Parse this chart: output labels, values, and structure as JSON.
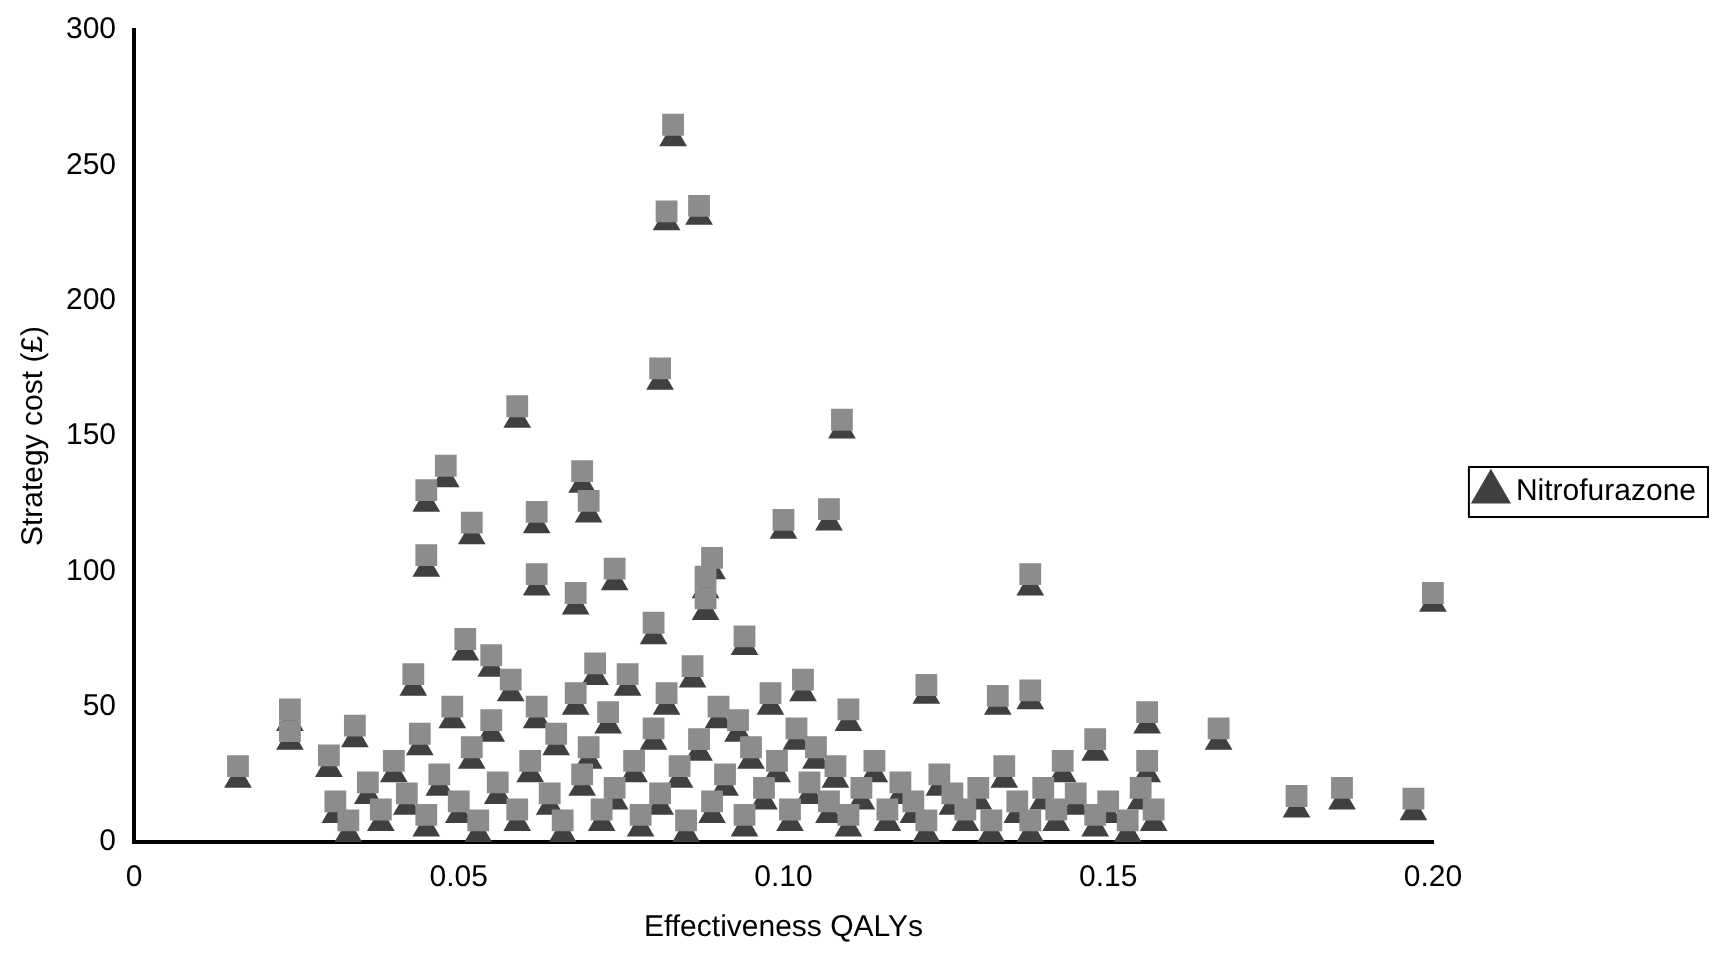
{
  "chart_data": {
    "type": "scatter",
    "xlabel": "Effectiveness QALYs",
    "ylabel": "Strategy cost (£)",
    "xlim": [
      0,
      0.2
    ],
    "xticks": [
      0,
      0.05,
      {
        "value": 0.1,
        "label": "0.10"
      },
      0.15,
      {
        "value": 0.2,
        "label": "0.20"
      }
    ],
    "ylim": [
      0,
      300
    ],
    "yticks": [
      0,
      50,
      100,
      150,
      200,
      250,
      300
    ],
    "grid": false,
    "legend": "right",
    "x": [
      0.083,
      0.082,
      0.087,
      0.081,
      0.059,
      0.109,
      0.048,
      0.045,
      0.069,
      0.07,
      0.052,
      0.062,
      0.1,
      0.107,
      0.045,
      0.062,
      0.068,
      0.074,
      0.089,
      0.088,
      0.088,
      0.138,
      0.2,
      0.156,
      0.167,
      0.179,
      0.186,
      0.197,
      0.148,
      0.156,
      0.143,
      0.138,
      0.122,
      0.133,
      0.11,
      0.016,
      0.024,
      0.024,
      0.03,
      0.034,
      0.043,
      0.051,
      0.08,
      0.094,
      0.055,
      0.071,
      0.103,
      0.031,
      0.033,
      0.036,
      0.038,
      0.04,
      0.042,
      0.044,
      0.045,
      0.047,
      0.049,
      0.05,
      0.052,
      0.053,
      0.055,
      0.056,
      0.058,
      0.059,
      0.061,
      0.062,
      0.064,
      0.065,
      0.066,
      0.068,
      0.069,
      0.07,
      0.072,
      0.073,
      0.074,
      0.076,
      0.077,
      0.078,
      0.08,
      0.081,
      0.082,
      0.084,
      0.085,
      0.086,
      0.087,
      0.089,
      0.09,
      0.091,
      0.093,
      0.094,
      0.095,
      0.097,
      0.098,
      0.099,
      0.101,
      0.102,
      0.104,
      0.105,
      0.107,
      0.108,
      0.11,
      0.112,
      0.114,
      0.116,
      0.118,
      0.12,
      0.122,
      0.124,
      0.126,
      0.128,
      0.13,
      0.132,
      0.134,
      0.136,
      0.138,
      0.14,
      0.142,
      0.145,
      0.148,
      0.15,
      0.153,
      0.155,
      0.157
    ],
    "series": [
      {
        "color": "#8c8c8c",
        "marker": "square",
        "values": [
          265,
          233,
          235,
          175,
          161,
          156,
          139,
          130,
          137,
          126,
          118,
          122,
          119,
          123,
          106,
          99,
          92,
          101,
          105,
          98,
          90,
          99,
          92,
          48,
          42,
          17,
          20,
          16,
          38,
          30,
          30,
          56,
          58,
          54,
          49,
          28,
          49,
          41,
          32,
          43,
          62,
          75,
          81,
          76,
          69,
          66,
          60,
          15,
          8,
          22,
          12,
          30,
          18,
          40,
          10,
          25,
          50,
          15,
          35,
          8,
          45,
          22,
          60,
          12,
          30,
          50,
          18,
          40,
          8,
          55,
          25,
          35,
          12,
          48,
          20,
          62,
          30,
          10,
          42,
          18,
          55,
          28,
          8,
          65,
          38,
          15,
          50,
          25,
          45,
          10,
          35,
          20,
          55,
          30,
          12,
          42,
          22,
          35,
          15,
          28,
          10,
          20,
          30,
          12,
          22,
          15,
          8,
          25,
          18,
          12,
          20,
          8,
          28,
          15,
          8,
          20,
          12,
          18,
          10,
          15,
          8,
          20,
          12
        ]
      },
      {
        "name": "Nitrofurazone",
        "color": "#404040",
        "marker": "triangle",
        "values": [
          260,
          229,
          231,
          170,
          156,
          152,
          134,
          125,
          132,
          121,
          113,
          117,
          115,
          118,
          101,
          94,
          87,
          96,
          100,
          93,
          85,
          94,
          88,
          43,
          37,
          12,
          15,
          11,
          33,
          25,
          25,
          52,
          54,
          50,
          44,
          23,
          44,
          37,
          27,
          38,
          57,
          70,
          76,
          72,
          64,
          61,
          55,
          10,
          3,
          17,
          7,
          25,
          13,
          35,
          5,
          20,
          45,
          10,
          30,
          3,
          40,
          17,
          55,
          7,
          25,
          45,
          13,
          35,
          3,
          50,
          20,
          30,
          7,
          43,
          15,
          57,
          25,
          5,
          37,
          13,
          50,
          23,
          3,
          60,
          33,
          10,
          45,
          20,
          40,
          5,
          30,
          15,
          50,
          25,
          7,
          37,
          17,
          30,
          10,
          23,
          5,
          15,
          25,
          7,
          17,
          10,
          3,
          20,
          13,
          7,
          15,
          3,
          23,
          10,
          3,
          15,
          7,
          13,
          5,
          10,
          3,
          15,
          7
        ]
      }
    ]
  }
}
